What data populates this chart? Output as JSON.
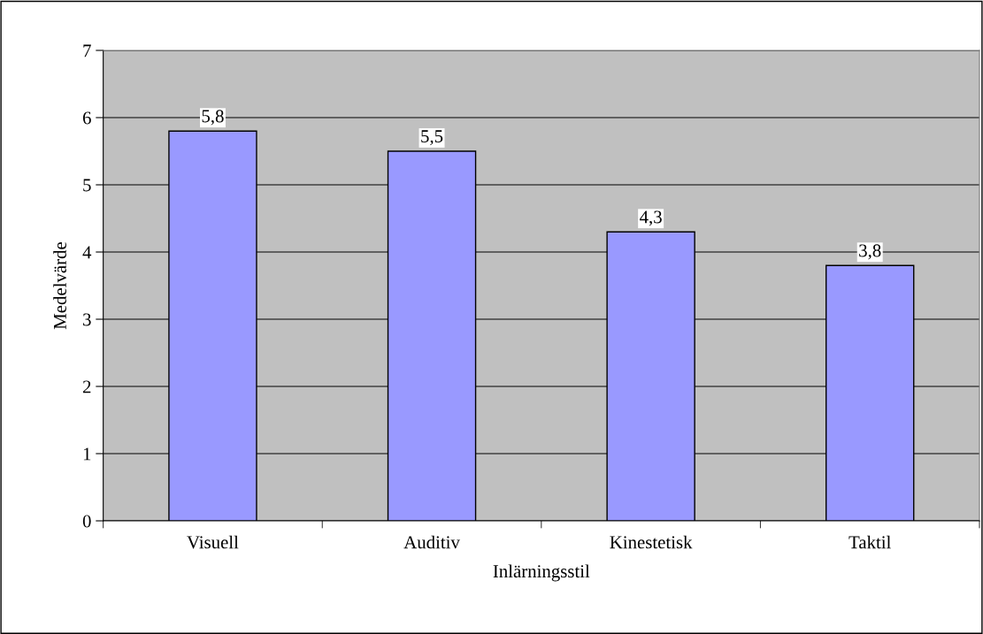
{
  "chart_data": {
    "type": "bar",
    "xlabel": "Inlärningsstil",
    "ylabel": "Medelvärde",
    "categories": [
      "Visuell",
      "Auditiv",
      "Kinestetisk",
      "Taktil"
    ],
    "values": [
      5.8,
      5.5,
      4.3,
      3.8
    ],
    "color": "#9999ff",
    "value_labels": [
      "5,8",
      "5,5",
      "4,3",
      "3,8"
    ],
    "ylim": [
      0,
      7
    ],
    "yticks": [
      0,
      1,
      2,
      3,
      4,
      5,
      6,
      7
    ],
    "grid": "y",
    "legend": false
  }
}
